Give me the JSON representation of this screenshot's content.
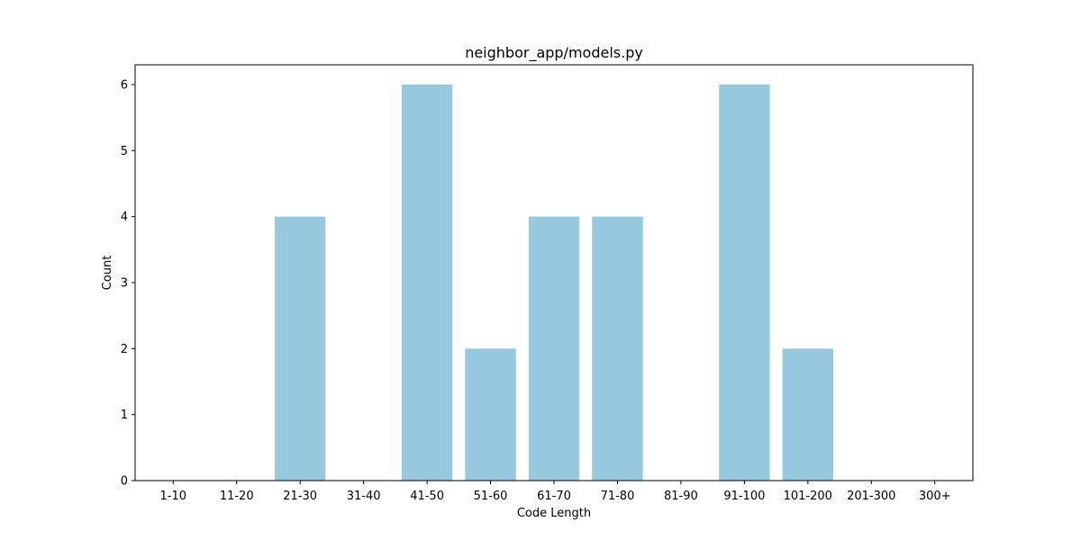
{
  "chart_data": {
    "type": "bar",
    "title": "neighbor_app/models.py",
    "xlabel": "Code Length",
    "ylabel": "Count",
    "categories": [
      "1-10",
      "11-20",
      "21-30",
      "31-40",
      "41-50",
      "51-60",
      "61-70",
      "71-80",
      "81-90",
      "91-100",
      "101-200",
      "201-300",
      "300+"
    ],
    "values": [
      0,
      0,
      4,
      0,
      6,
      2,
      4,
      4,
      0,
      6,
      2,
      0,
      0
    ],
    "ylim": [
      0,
      6.3
    ],
    "yticks": [
      0,
      1,
      2,
      3,
      4,
      5,
      6
    ],
    "grid": false,
    "legend": "none",
    "bar_color": "#96c9dd"
  }
}
